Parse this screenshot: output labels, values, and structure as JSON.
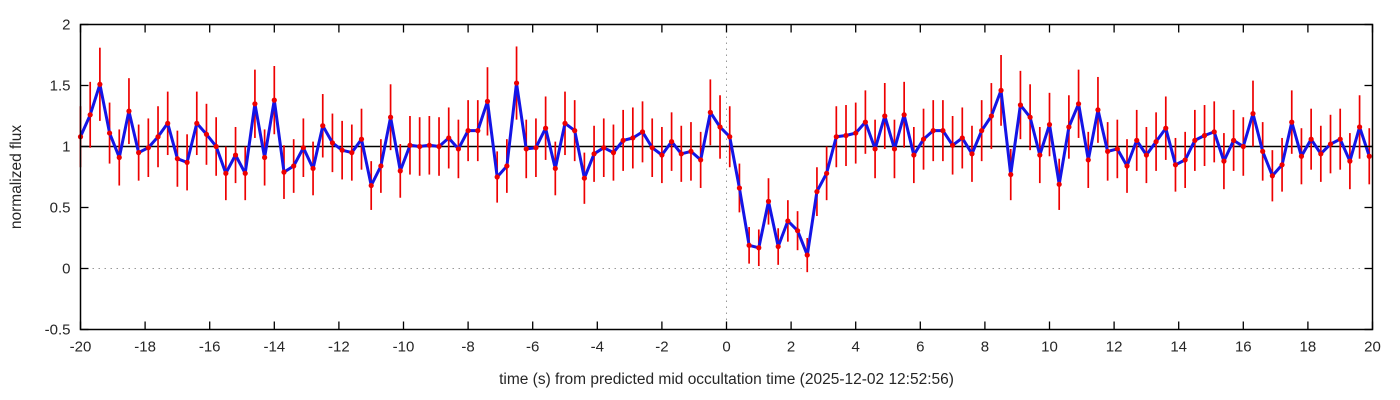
{
  "chart_data": {
    "type": "line",
    "title": "",
    "xlabel": "time (s) from predicted mid occultation time (2025-12-02 12:52:56)",
    "ylabel": "normalized flux",
    "xlim": [
      -20,
      20
    ],
    "ylim": [
      -0.5,
      2
    ],
    "x_ticks": [
      -20,
      -18,
      -16,
      -14,
      -12,
      -10,
      -8,
      -6,
      -4,
      -2,
      0,
      2,
      4,
      6,
      8,
      10,
      12,
      14,
      16,
      18,
      20
    ],
    "y_ticks": [
      -0.5,
      0,
      0.5,
      1,
      1.5,
      2
    ],
    "grid": {
      "dotted_horizontal_at": 0,
      "dotted_vertical_at": 0,
      "solid_reference_line_at": 1
    },
    "legend": "none",
    "colors": {
      "line": "#1414e6",
      "marker": "#ee0000",
      "errorbar": "#ee0000",
      "axis": "#000000",
      "grid_dotted": "#999999",
      "text": "#262626"
    },
    "series": [
      {
        "name": "normalized flux with error bars",
        "marker": "filled-circle",
        "x": [
          -20,
          -19.7,
          -19.4,
          -19.1,
          -18.8,
          -18.5,
          -18.2,
          -17.9,
          -17.6,
          -17.3,
          -17,
          -16.7,
          -16.4,
          -16.1,
          -15.8,
          -15.5,
          -15.2,
          -14.9,
          -14.6,
          -14.3,
          -14,
          -13.7,
          -13.4,
          -13.1,
          -12.8,
          -12.5,
          -12.2,
          -11.9,
          -11.6,
          -11.3,
          -11,
          -10.7,
          -10.4,
          -10.1,
          -9.8,
          -9.5,
          -9.2,
          -8.9,
          -8.6,
          -8.3,
          -8,
          -7.7,
          -7.4,
          -7.1,
          -6.8,
          -6.5,
          -6.2,
          -5.9,
          -5.6,
          -5.3,
          -5,
          -4.7,
          -4.4,
          -4.1,
          -3.8,
          -3.5,
          -3.2,
          -2.9,
          -2.6,
          -2.3,
          -2,
          -1.7,
          -1.4,
          -1.1,
          -0.8,
          -0.5,
          -0.2,
          0.1,
          0.4,
          0.7,
          1,
          1.3,
          1.6,
          1.9,
          2.2,
          2.5,
          2.8,
          3.1,
          3.4,
          3.7,
          4,
          4.3,
          4.6,
          4.9,
          5.2,
          5.5,
          5.8,
          6.1,
          6.4,
          6.7,
          7,
          7.3,
          7.6,
          7.9,
          8.2,
          8.5,
          8.8,
          9.1,
          9.4,
          9.7,
          10,
          10.3,
          10.6,
          10.9,
          11.2,
          11.5,
          11.8,
          12.1,
          12.4,
          12.7,
          13,
          13.3,
          13.6,
          13.9,
          14.2,
          14.5,
          14.8,
          15.1,
          15.4,
          15.7,
          16,
          16.3,
          16.6,
          16.9,
          17.2,
          17.5,
          17.8,
          18.1,
          18.4,
          18.7,
          19,
          19.3,
          19.6,
          19.9
        ],
        "y": [
          1.08,
          1.26,
          1.51,
          1.11,
          0.91,
          1.29,
          0.95,
          0.99,
          1.08,
          1.19,
          0.9,
          0.87,
          1.19,
          1.1,
          1.0,
          0.78,
          0.93,
          0.78,
          1.35,
          0.91,
          1.38,
          0.79,
          0.84,
          0.99,
          0.82,
          1.17,
          1.03,
          0.97,
          0.95,
          1.06,
          0.68,
          0.84,
          1.24,
          0.8,
          1.01,
          1.0,
          1.01,
          1.0,
          1.07,
          0.98,
          1.13,
          1.13,
          1.37,
          0.75,
          0.84,
          1.52,
          0.98,
          0.99,
          1.15,
          0.82,
          1.19,
          1.13,
          0.74,
          0.94,
          0.99,
          0.95,
          1.05,
          1.07,
          1.12,
          0.99,
          0.93,
          1.04,
          0.94,
          0.96,
          0.89,
          1.28,
          1.16,
          1.08,
          0.66,
          0.19,
          0.17,
          0.55,
          0.18,
          0.39,
          0.31,
          0.11,
          0.63,
          0.78,
          1.08,
          1.09,
          1.11,
          1.2,
          0.98,
          1.25,
          0.98,
          1.26,
          0.93,
          1.06,
          1.13,
          1.13,
          1.01,
          1.07,
          0.94,
          1.13,
          1.25,
          1.46,
          0.77,
          1.34,
          1.24,
          0.93,
          1.18,
          0.69,
          1.16,
          1.35,
          0.89,
          1.3,
          0.96,
          0.98,
          0.84,
          1.05,
          0.93,
          1.04,
          1.15,
          0.85,
          0.89,
          1.05,
          1.09,
          1.12,
          0.88,
          1.05,
          1.0,
          1.27,
          0.96,
          0.76,
          0.85,
          1.2,
          0.92,
          1.06,
          0.94,
          1.02,
          1.06,
          0.88,
          1.16,
          0.92
        ],
        "yerr": [
          0.25,
          0.27,
          0.3,
          0.25,
          0.23,
          0.27,
          0.23,
          0.24,
          0.25,
          0.26,
          0.23,
          0.23,
          0.26,
          0.25,
          0.24,
          0.22,
          0.23,
          0.22,
          0.28,
          0.23,
          0.28,
          0.22,
          0.22,
          0.24,
          0.22,
          0.26,
          0.24,
          0.24,
          0.23,
          0.25,
          0.2,
          0.22,
          0.27,
          0.22,
          0.24,
          0.24,
          0.24,
          0.24,
          0.25,
          0.24,
          0.25,
          0.25,
          0.28,
          0.21,
          0.22,
          0.3,
          0.24,
          0.24,
          0.26,
          0.22,
          0.26,
          0.25,
          0.21,
          0.23,
          0.24,
          0.23,
          0.25,
          0.25,
          0.25,
          0.24,
          0.23,
          0.24,
          0.23,
          0.24,
          0.23,
          0.27,
          0.26,
          0.25,
          0.2,
          0.15,
          0.15,
          0.19,
          0.15,
          0.17,
          0.16,
          0.14,
          0.2,
          0.22,
          0.25,
          0.25,
          0.25,
          0.26,
          0.24,
          0.27,
          0.24,
          0.27,
          0.23,
          0.25,
          0.25,
          0.25,
          0.24,
          0.25,
          0.23,
          0.25,
          0.27,
          0.29,
          0.21,
          0.28,
          0.27,
          0.23,
          0.26,
          0.21,
          0.26,
          0.28,
          0.23,
          0.27,
          0.24,
          0.24,
          0.22,
          0.25,
          0.23,
          0.24,
          0.26,
          0.22,
          0.23,
          0.25,
          0.25,
          0.25,
          0.23,
          0.25,
          0.24,
          0.27,
          0.24,
          0.21,
          0.22,
          0.26,
          0.23,
          0.25,
          0.23,
          0.24,
          0.25,
          0.23,
          0.26,
          0.23
        ]
      }
    ]
  }
}
